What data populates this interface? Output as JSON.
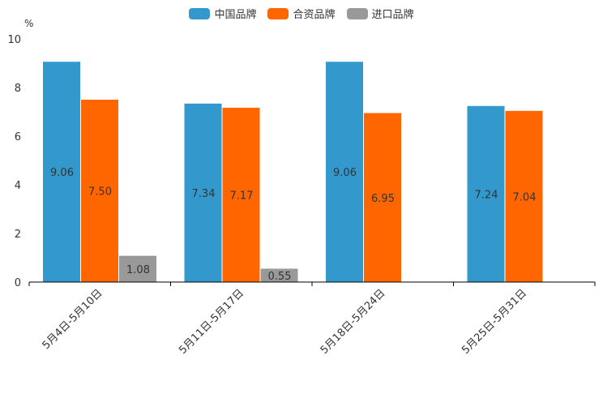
{
  "chart_data": {
    "type": "bar",
    "ylabel": "%",
    "ylim": [
      0,
      10
    ],
    "yticks": [
      "0",
      "2",
      "4",
      "6",
      "8",
      "10"
    ],
    "categories": [
      "5月4日-5月10日",
      "5月11日-5月17日",
      "5月18日-5月24日",
      "5月25日-5月31日"
    ],
    "series": [
      {
        "name": "中国品牌",
        "color": "#3399cc",
        "values": [
          9.06,
          7.34,
          9.06,
          7.24
        ],
        "labels": [
          "9.06",
          "7.34",
          "9.06",
          "7.24"
        ]
      },
      {
        "name": "合资品牌",
        "color": "#ff6600",
        "values": [
          7.5,
          7.17,
          6.95,
          7.04
        ],
        "labels": [
          "7.50",
          "7.17",
          "6.95",
          "7.04"
        ]
      },
      {
        "name": "进口品牌",
        "color": "#999999",
        "values": [
          1.08,
          0.55,
          null,
          null
        ],
        "labels": [
          "1.08",
          "0.55",
          null,
          null
        ]
      }
    ],
    "legend_position": "top-center"
  }
}
